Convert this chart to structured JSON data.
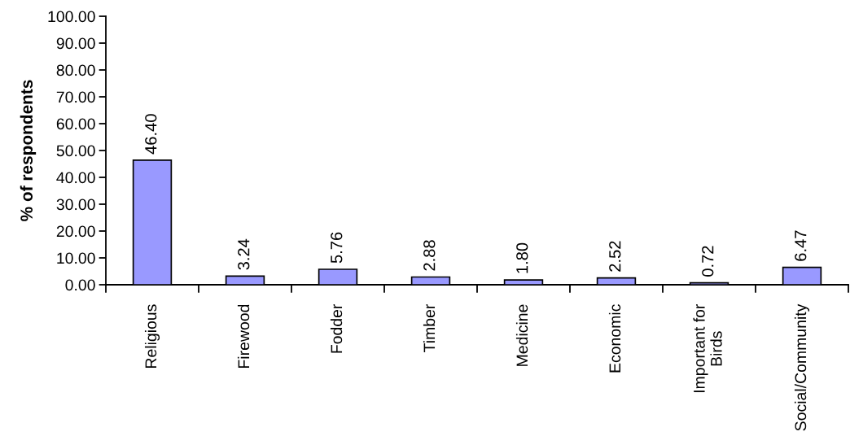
{
  "chart_data": {
    "type": "bar",
    "ylabel": "% of respondents",
    "categories": [
      "Religious",
      "Firewood",
      "Fodder",
      "Timber",
      "Medicine",
      "Economic",
      "Important for\nBirds",
      "Social/Community"
    ],
    "values": [
      46.4,
      3.24,
      5.76,
      2.88,
      1.8,
      2.52,
      0.72,
      6.47
    ],
    "value_labels": [
      "46.40",
      "3.24",
      "5.76",
      "2.88",
      "1.80",
      "2.52",
      "0.72",
      "6.47"
    ],
    "color": "#9999ff",
    "ylim": [
      0,
      100
    ],
    "yticks": [
      {
        "value": 0,
        "label": "0.00"
      },
      {
        "value": 10,
        "label": "10.00"
      },
      {
        "value": 20,
        "label": "20.00"
      },
      {
        "value": 30,
        "label": "30.00"
      },
      {
        "value": 40,
        "label": "40.00"
      },
      {
        "value": 50,
        "label": "50.00"
      },
      {
        "value": 60,
        "label": "60.00"
      },
      {
        "value": 70,
        "label": "70.00"
      },
      {
        "value": 80,
        "label": "80.00"
      },
      {
        "value": 90,
        "label": "90.00"
      },
      {
        "value": 100,
        "label": "100.00"
      }
    ],
    "grid": false
  }
}
